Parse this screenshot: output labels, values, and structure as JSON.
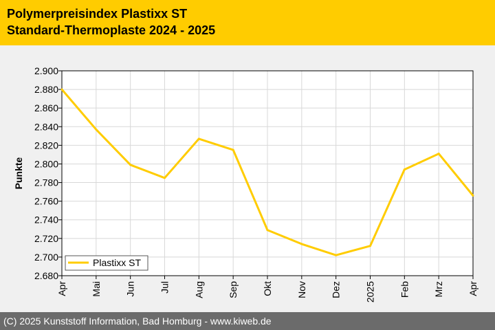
{
  "header": {
    "title": "Polymerpreisindex Plastixx ST",
    "subtitle": "Standard-Thermoplaste 2024 - 2025"
  },
  "footer": {
    "copyright": "(C) 2025 Kunststoff Information, Bad Homburg - www.kiweb.de"
  },
  "colors": {
    "header_bg": "#ffcc00",
    "series_line": "#ffcc00",
    "chart_bg": "#f0f0f0",
    "footer_bg": "#6b6b6b"
  },
  "chart_data": {
    "type": "line",
    "title": "Polymerpreisindex Plastixx ST",
    "subtitle": "Standard-Thermoplaste 2024 - 2025",
    "xlabel": "",
    "ylabel": "Punkte",
    "categories": [
      "Apr",
      "Mai",
      "Jun",
      "Jul",
      "Aug",
      "Sep",
      "Okt",
      "Nov",
      "Dez",
      "2025",
      "Feb",
      "Mrz",
      "Apr"
    ],
    "series": [
      {
        "name": "Plastixx ST",
        "values": [
          2.88,
          2.837,
          2.799,
          2.785,
          2.827,
          2.815,
          2.729,
          2.714,
          2.702,
          2.712,
          2.794,
          2.811,
          2.766
        ]
      }
    ],
    "ylim": [
      2.68,
      2.9
    ],
    "yticks": [
      "2.900",
      "2.880",
      "2.860",
      "2.840",
      "2.820",
      "2.800",
      "2.780",
      "2.760",
      "2.740",
      "2.720",
      "2.700",
      "2.680"
    ],
    "grid": true,
    "legend": "bottom-left"
  }
}
